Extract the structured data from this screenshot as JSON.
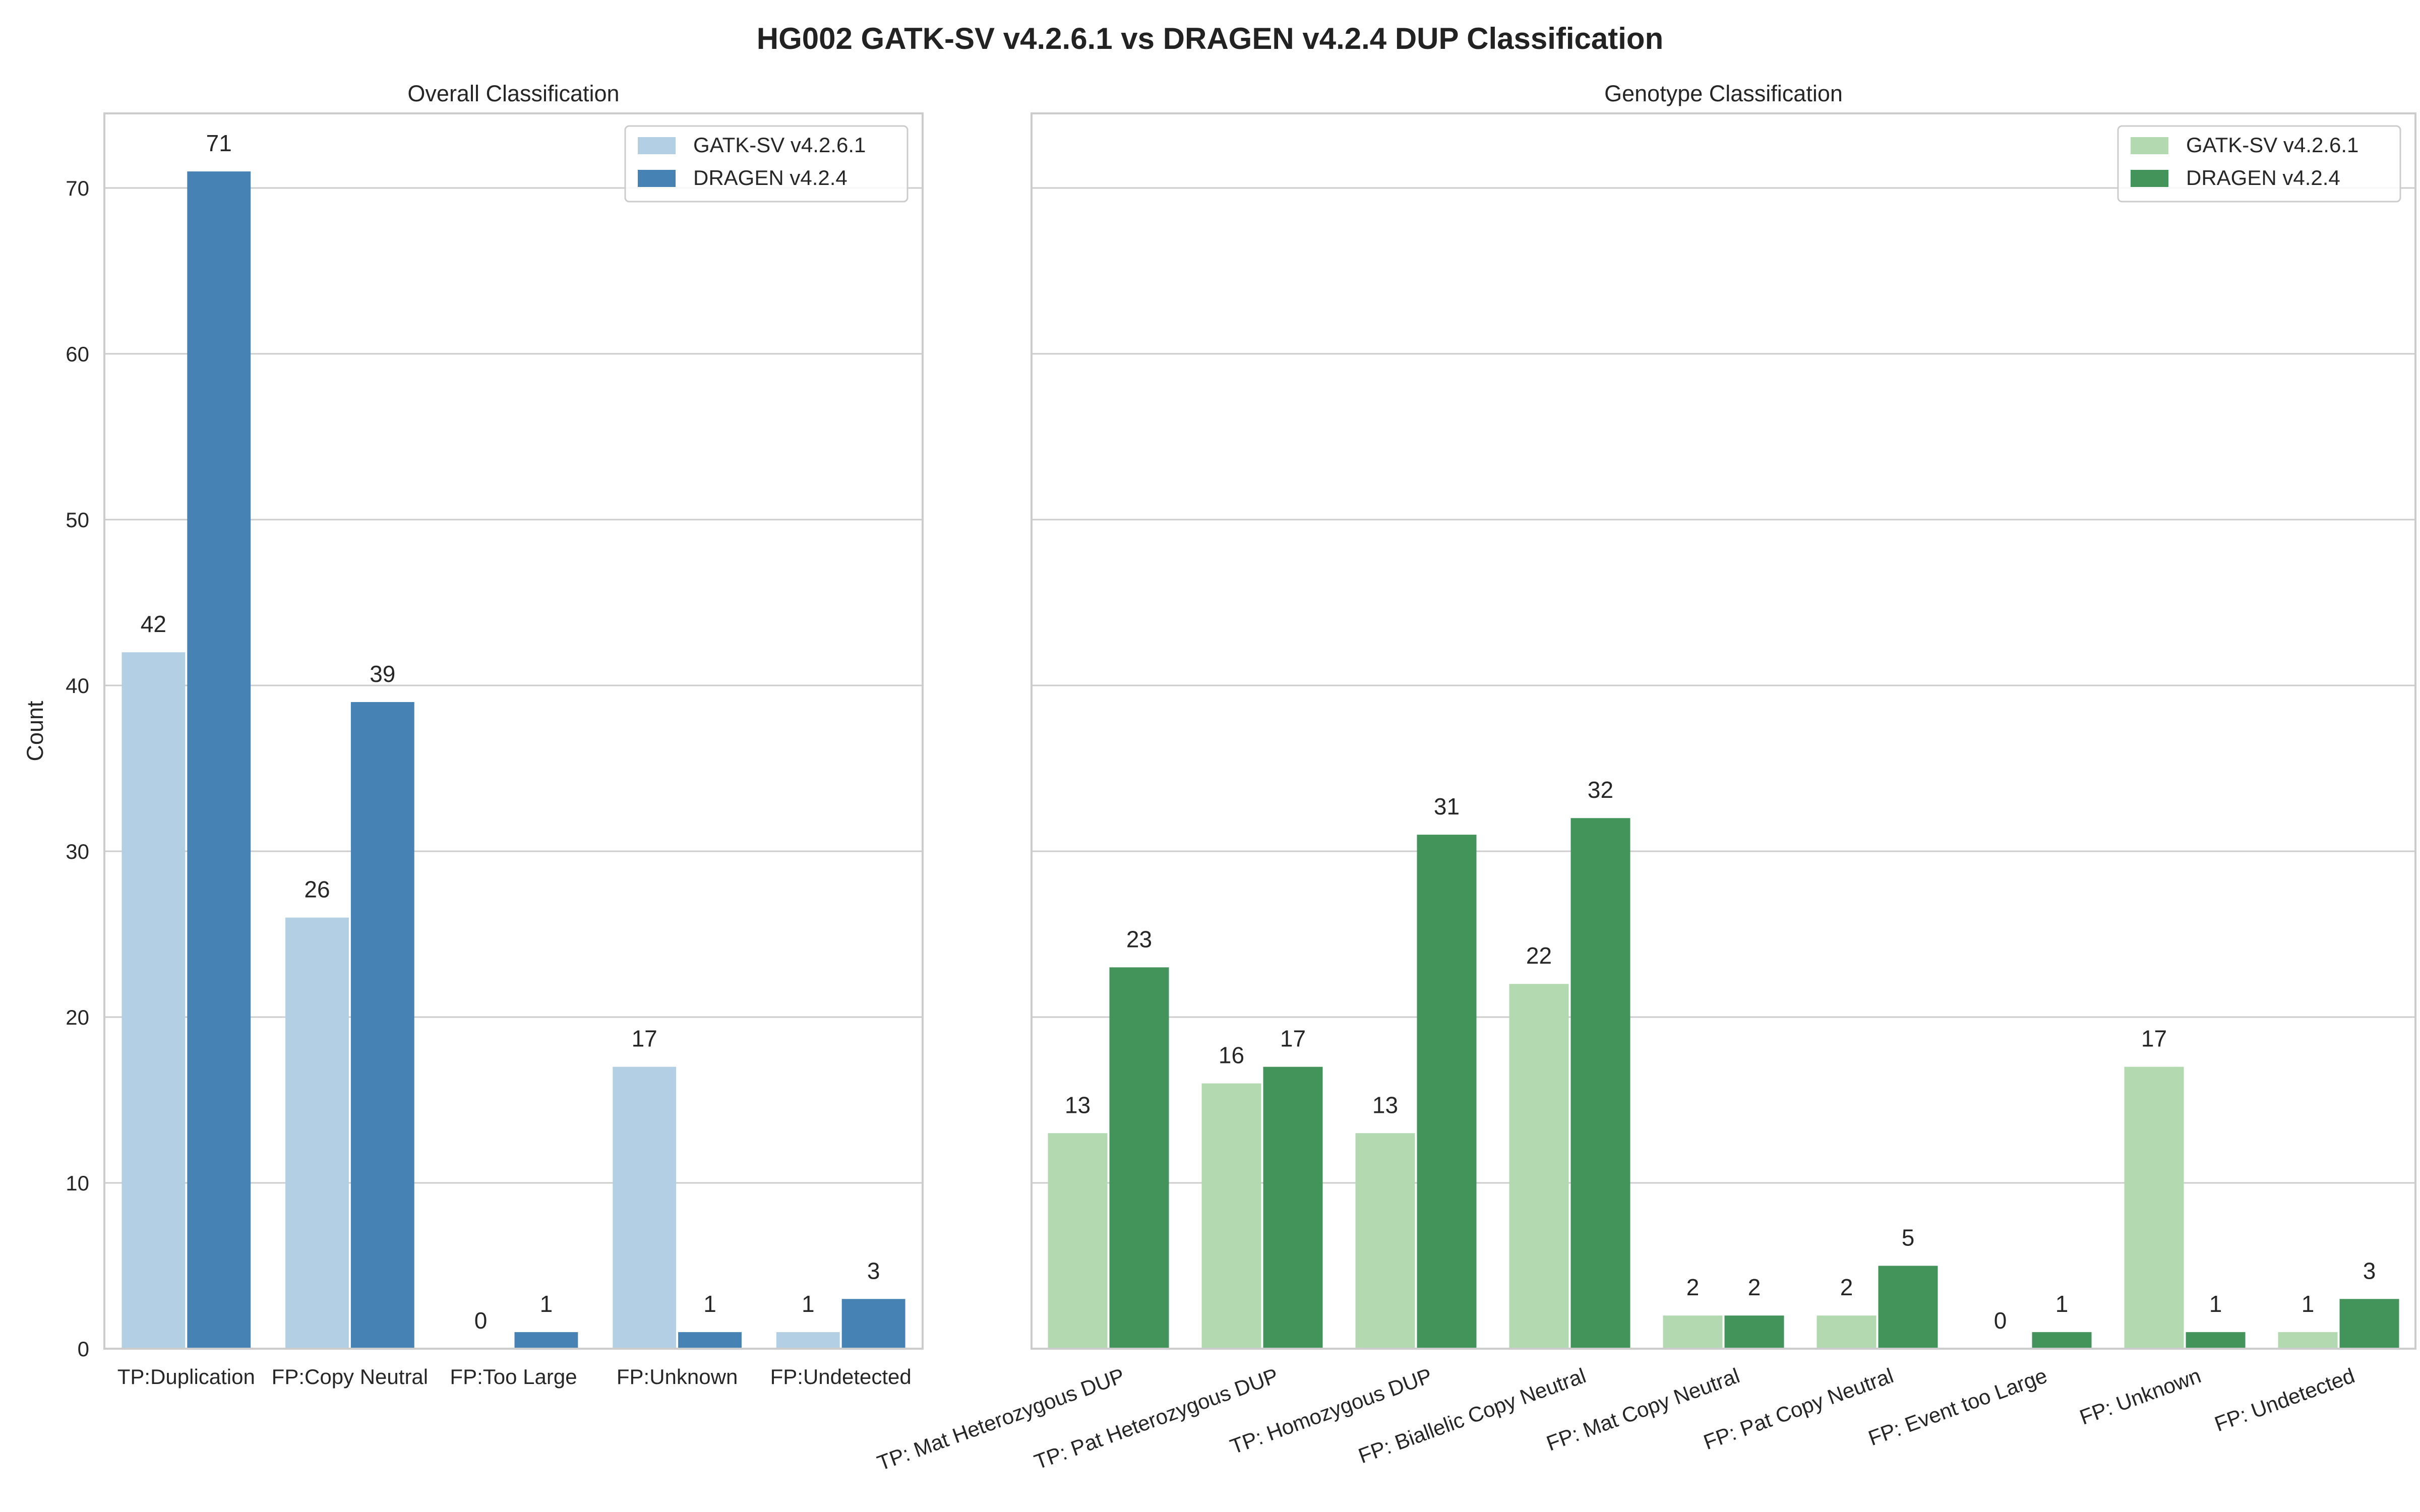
{
  "title": "HG002 GATK-SV v4.2.6.1 vs DRAGEN v4.2.4 DUP Classification",
  "chart_data": [
    {
      "type": "bar",
      "title": "Overall Classification",
      "ylabel": "Count",
      "xlabel": "",
      "ylim": [
        0,
        74.5
      ],
      "yticks": [
        0,
        10,
        20,
        30,
        40,
        50,
        60,
        70
      ],
      "grid": true,
      "legend": "top-right",
      "categories": [
        "TP:Duplication",
        "FP:Copy Neutral",
        "FP:Too Large",
        "FP:Unknown",
        "FP:Undetected"
      ],
      "series": [
        {
          "name": "GATK-SV v4.2.6.1",
          "color": "#b3cfe3",
          "values": [
            42,
            26,
            0,
            17,
            1
          ]
        },
        {
          "name": "DRAGEN v4.2.4",
          "color": "#4682b4",
          "values": [
            71,
            39,
            1,
            1,
            3
          ]
        }
      ]
    },
    {
      "type": "bar",
      "title": "Genotype Classification",
      "ylabel": "",
      "xlabel": "",
      "ylim": [
        0,
        74.5
      ],
      "yticks": [
        0,
        10,
        20,
        30,
        40,
        50,
        60,
        70
      ],
      "grid": true,
      "legend": "top-right",
      "categories": [
        "TP: Mat Heterozygous DUP",
        "TP: Pat Heterozygous DUP",
        "TP: Homozygous DUP",
        "FP: Biallelic Copy Neutral",
        "FP: Mat Copy Neutral",
        "FP: Pat Copy Neutral",
        "FP: Event too Large",
        "FP: Unknown",
        "FP: Undetected"
      ],
      "series": [
        {
          "name": "GATK-SV v4.2.6.1",
          "color": "#b3d9b0",
          "values": [
            13,
            16,
            13,
            22,
            2,
            2,
            0,
            17,
            1
          ]
        },
        {
          "name": "DRAGEN v4.2.4",
          "color": "#43945b",
          "values": [
            23,
            17,
            31,
            32,
            2,
            5,
            1,
            1,
            3
          ]
        }
      ]
    }
  ]
}
